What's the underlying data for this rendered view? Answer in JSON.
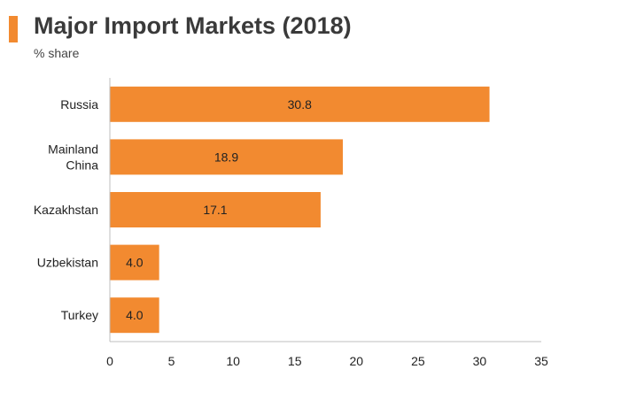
{
  "header": {
    "title": "Major Import Markets (2018)",
    "subtitle": "% share"
  },
  "colors": {
    "accent": "#f28a30",
    "bar": "#f28a30",
    "axis": "#bfbfbf"
  },
  "chart_data": {
    "type": "bar",
    "orientation": "horizontal",
    "title": "Major Import Markets (2018)",
    "subtitle": "% share",
    "categories": [
      "Russia",
      "Mainland China",
      "Kazakhstan",
      "Uzbekistan",
      "Turkey"
    ],
    "category_lines": [
      [
        "Russia"
      ],
      [
        "Mainland",
        "China"
      ],
      [
        "Kazakhstan"
      ],
      [
        "Uzbekistan"
      ],
      [
        "Turkey"
      ]
    ],
    "values": [
      30.8,
      18.9,
      17.1,
      4.0,
      4.0
    ],
    "data_labels": [
      "30.8",
      "18.9",
      "17.1",
      "4.0",
      "4.0"
    ],
    "xlim": [
      0,
      35
    ],
    "xticks": [
      0,
      5,
      10,
      15,
      20,
      25,
      30,
      35
    ],
    "grid": false,
    "legend": "none"
  }
}
